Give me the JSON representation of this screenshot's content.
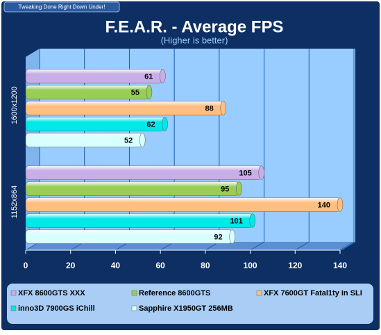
{
  "header": {
    "tagline": "Tweaking Done Right Down Under!"
  },
  "chart_data": {
    "type": "bar",
    "orientation": "horizontal",
    "title": "F.E.A.R. - Average FPS",
    "subtitle": "(Higher is better)",
    "categories": [
      "1600x1200",
      "1152x864"
    ],
    "series": [
      {
        "name": "XFX 8600GTS XXX",
        "color": "#c8aee6",
        "values": [
          61,
          105
        ]
      },
      {
        "name": "Reference 8600GTS",
        "color": "#9acd55",
        "values": [
          55,
          95
        ]
      },
      {
        "name": "XFX 7600GT Fatal1ty in SLI",
        "color": "#ffbf80",
        "values": [
          88,
          140
        ]
      },
      {
        "name": "inno3D 7900GS iChill",
        "color": "#00e8e8",
        "values": [
          62,
          101
        ]
      },
      {
        "name": "Sapphire X1950GT 256MB",
        "color": "#d8ffff",
        "values": [
          52,
          92
        ]
      }
    ],
    "xlim": [
      0,
      140
    ],
    "xticks": [
      0,
      20,
      40,
      60,
      80,
      100,
      120,
      140
    ],
    "grid": true
  }
}
